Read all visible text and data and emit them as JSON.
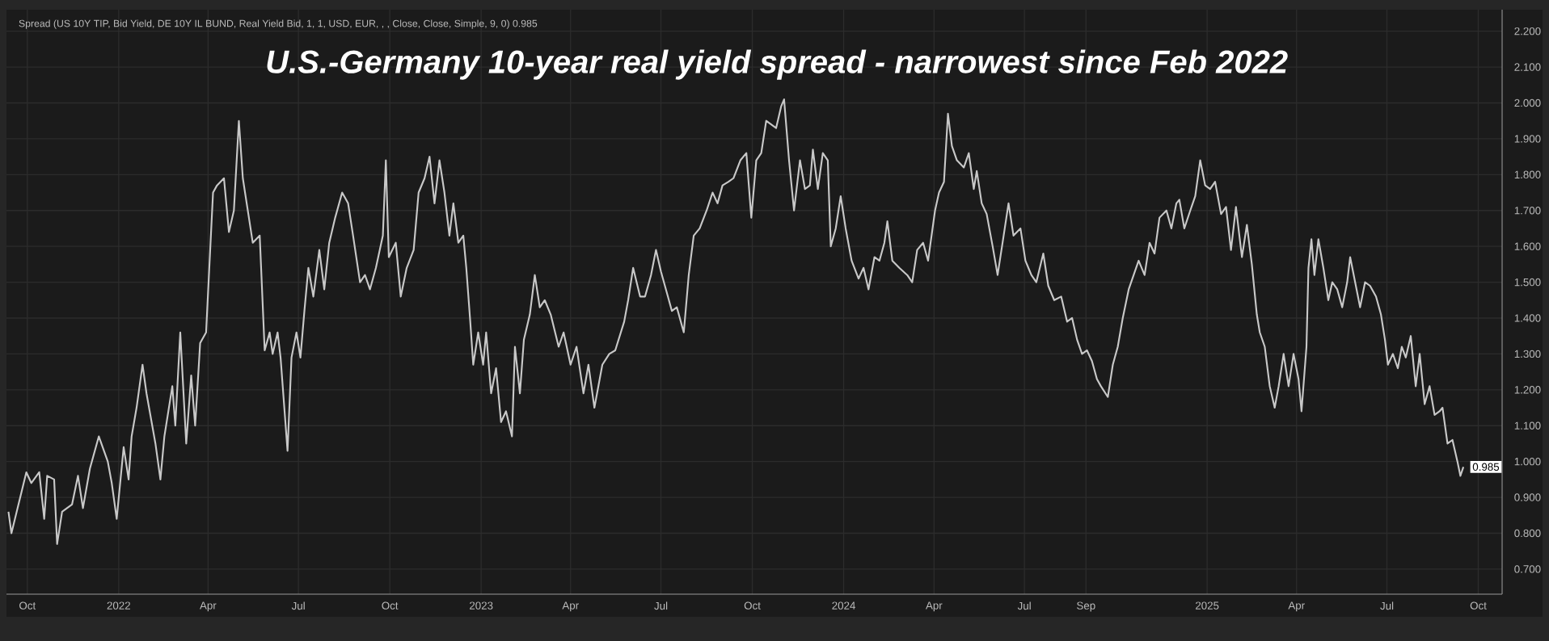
{
  "chart_data": {
    "type": "line",
    "title": "U.S.-Germany 10-year real yield spread - narrowest since Feb 2022",
    "subtitle": "Spread (US 10Y TIP, Bid Yield, DE 10Y IL BUND, Real Yield Bid, 1, 1, USD, EUR, , , Close, Close, Simple, 9, 0) 0.985",
    "color": "#c8c8c8",
    "grid": true,
    "xlim": [
      "2021-09-10",
      "2025-10-25"
    ],
    "ylim": [
      0.63,
      2.26
    ],
    "xticks": [
      {
        "value": "2021-10-01",
        "label": "Oct"
      },
      {
        "value": "2022-01-01",
        "label": "2022"
      },
      {
        "value": "2022-04-01",
        "label": "Apr"
      },
      {
        "value": "2022-07-01",
        "label": "Jul"
      },
      {
        "value": "2022-10-01",
        "label": "Oct"
      },
      {
        "value": "2023-01-01",
        "label": "2023"
      },
      {
        "value": "2023-04-01",
        "label": "Apr"
      },
      {
        "value": "2023-07-01",
        "label": "Jul"
      },
      {
        "value": "2023-10-01",
        "label": "Oct"
      },
      {
        "value": "2024-01-01",
        "label": "2024"
      },
      {
        "value": "2024-04-01",
        "label": "Apr"
      },
      {
        "value": "2024-07-01",
        "label": "Jul"
      },
      {
        "value": "2024-09-01",
        "label": "Sep"
      },
      {
        "value": "2025-01-01",
        "label": "2025"
      },
      {
        "value": "2025-04-01",
        "label": "Apr"
      },
      {
        "value": "2025-07-01",
        "label": "Jul"
      },
      {
        "value": "2025-10-01",
        "label": "Oct"
      }
    ],
    "yticks": [
      {
        "value": 0.7,
        "label": "0.700"
      },
      {
        "value": 0.8,
        "label": "0.800"
      },
      {
        "value": 0.9,
        "label": "0.900"
      },
      {
        "value": 1.0,
        "label": "1.000"
      },
      {
        "value": 1.1,
        "label": "1.100"
      },
      {
        "value": 1.2,
        "label": "1.200"
      },
      {
        "value": 1.3,
        "label": "1.300"
      },
      {
        "value": 1.4,
        "label": "1.400"
      },
      {
        "value": 1.5,
        "label": "1.500"
      },
      {
        "value": 1.6,
        "label": "1.600"
      },
      {
        "value": 1.7,
        "label": "1.700"
      },
      {
        "value": 1.8,
        "label": "1.800"
      },
      {
        "value": 1.9,
        "label": "1.900"
      },
      {
        "value": 2.0,
        "label": "2.000"
      },
      {
        "value": 2.1,
        "label": "2.100"
      },
      {
        "value": 2.2,
        "label": "2.200"
      }
    ],
    "annotations": [
      "0.985"
    ],
    "x": [
      "2021-09-12",
      "2021-09-15",
      "2021-09-30",
      "2021-10-05",
      "2021-10-13",
      "2021-10-18",
      "2021-10-21",
      "2021-10-28",
      "2021-10-31",
      "2021-11-05",
      "2021-11-15",
      "2021-11-21",
      "2021-11-26",
      "2021-12-03",
      "2021-12-12",
      "2021-12-21",
      "2021-12-25",
      "2021-12-30",
      "2022-01-06",
      "2022-01-11",
      "2022-01-14",
      "2022-01-19",
      "2022-01-25",
      "2022-01-29",
      "2022-02-07",
      "2022-02-12",
      "2022-02-16",
      "2022-02-24",
      "2022-02-27",
      "2022-03-04",
      "2022-03-10",
      "2022-03-15",
      "2022-03-19",
      "2022-03-24",
      "2022-03-30",
      "2022-04-06",
      "2022-04-10",
      "2022-04-17",
      "2022-04-22",
      "2022-04-27",
      "2022-05-02",
      "2022-05-06",
      "2022-05-11",
      "2022-05-16",
      "2022-05-23",
      "2022-05-28",
      "2022-06-02",
      "2022-06-05",
      "2022-06-10",
      "2022-06-13",
      "2022-06-20",
      "2022-06-24",
      "2022-06-29",
      "2022-07-03",
      "2022-07-07",
      "2022-07-11",
      "2022-07-16",
      "2022-07-22",
      "2022-07-27",
      "2022-08-01",
      "2022-08-07",
      "2022-08-14",
      "2022-08-20",
      "2022-08-25",
      "2022-09-01",
      "2022-09-06",
      "2022-09-11",
      "2022-09-17",
      "2022-09-24",
      "2022-09-27",
      "2022-09-30",
      "2022-10-07",
      "2022-10-12",
      "2022-10-18",
      "2022-10-25",
      "2022-10-30",
      "2022-11-05",
      "2022-11-10",
      "2022-11-15",
      "2022-11-20",
      "2022-11-25",
      "2022-11-30",
      "2022-12-04",
      "2022-12-09",
      "2022-12-14",
      "2022-12-17",
      "2022-12-21",
      "2022-12-24",
      "2022-12-29",
      "2023-01-03",
      "2023-01-06",
      "2023-01-11",
      "2023-01-16",
      "2023-01-21",
      "2023-01-26",
      "2023-02-01",
      "2023-02-04",
      "2023-02-09",
      "2023-02-13",
      "2023-02-19",
      "2023-02-24",
      "2023-03-01",
      "2023-03-06",
      "2023-03-12",
      "2023-03-20",
      "2023-03-25",
      "2023-04-01",
      "2023-04-07",
      "2023-04-14",
      "2023-04-19",
      "2023-04-25",
      "2023-05-03",
      "2023-05-10",
      "2023-05-16",
      "2023-05-25",
      "2023-05-29",
      "2023-06-03",
      "2023-06-10",
      "2023-06-15",
      "2023-06-21",
      "2023-06-26",
      "2023-07-01",
      "2023-07-08",
      "2023-07-12",
      "2023-07-17",
      "2023-07-24",
      "2023-07-29",
      "2023-08-03",
      "2023-08-09",
      "2023-08-16",
      "2023-08-22",
      "2023-08-27",
      "2023-09-01",
      "2023-09-07",
      "2023-09-12",
      "2023-09-19",
      "2023-09-25",
      "2023-09-30",
      "2023-10-05",
      "2023-10-10",
      "2023-10-15",
      "2023-10-25",
      "2023-10-30",
      "2023-11-02",
      "2023-11-07",
      "2023-11-12",
      "2023-11-18",
      "2023-11-23",
      "2023-11-28",
      "2023-12-01",
      "2023-12-06",
      "2023-12-11",
      "2023-12-16",
      "2023-12-19",
      "2023-12-24",
      "2023-12-29",
      "2024-01-03",
      "2024-01-09",
      "2024-01-16",
      "2024-01-21",
      "2024-01-26",
      "2024-02-01",
      "2024-02-06",
      "2024-02-11",
      "2024-02-14",
      "2024-02-19",
      "2024-02-26",
      "2024-03-05",
      "2024-03-10",
      "2024-03-15",
      "2024-03-21",
      "2024-03-26",
      "2024-04-02",
      "2024-04-06",
      "2024-04-11",
      "2024-04-15",
      "2024-04-19",
      "2024-04-24",
      "2024-05-01",
      "2024-05-06",
      "2024-05-11",
      "2024-05-14",
      "2024-05-19",
      "2024-05-24",
      "2024-05-30",
      "2024-06-04",
      "2024-06-09",
      "2024-06-15",
      "2024-06-20",
      "2024-06-27",
      "2024-07-02",
      "2024-07-08",
      "2024-07-13",
      "2024-07-20",
      "2024-07-25",
      "2024-07-31",
      "2024-08-07",
      "2024-08-13",
      "2024-08-18",
      "2024-08-23",
      "2024-08-28",
      "2024-09-02",
      "2024-09-07",
      "2024-09-12",
      "2024-09-16",
      "2024-09-23",
      "2024-09-28",
      "2024-10-03",
      "2024-10-08",
      "2024-10-14",
      "2024-10-19",
      "2024-10-24",
      "2024-10-30",
      "2024-11-04",
      "2024-11-09",
      "2024-11-14",
      "2024-11-21",
      "2024-11-26",
      "2024-12-01",
      "2024-12-04",
      "2024-12-09",
      "2024-12-15",
      "2024-12-20",
      "2024-12-25",
      "2024-12-30",
      "2025-01-04",
      "2025-01-09",
      "2025-01-15",
      "2025-01-20",
      "2025-01-25",
      "2025-01-30",
      "2025-02-05",
      "2025-02-10",
      "2025-02-15",
      "2025-02-20",
      "2025-02-23",
      "2025-02-28",
      "2025-03-05",
      "2025-03-10",
      "2025-03-14",
      "2025-03-19",
      "2025-03-24",
      "2025-03-29",
      "2025-04-03",
      "2025-04-06",
      "2025-04-11",
      "2025-04-13",
      "2025-04-16",
      "2025-04-19",
      "2025-04-23",
      "2025-04-28",
      "2025-05-03",
      "2025-05-07",
      "2025-05-12",
      "2025-05-17",
      "2025-05-22",
      "2025-05-25",
      "2025-05-30",
      "2025-06-04",
      "2025-06-09",
      "2025-06-14",
      "2025-06-20",
      "2025-06-25",
      "2025-06-29",
      "2025-07-02",
      "2025-07-07",
      "2025-07-12",
      "2025-07-16",
      "2025-07-20",
      "2025-07-25",
      "2025-07-30",
      "2025-08-03",
      "2025-08-08",
      "2025-08-13",
      "2025-08-18",
      "2025-08-23",
      "2025-08-26",
      "2025-08-31",
      "2025-09-05",
      "2025-09-10",
      "2025-09-13",
      "2025-09-16"
    ],
    "values": [
      0.86,
      0.8,
      0.97,
      0.94,
      0.97,
      0.84,
      0.96,
      0.95,
      0.77,
      0.86,
      0.88,
      0.96,
      0.87,
      0.98,
      1.07,
      1.0,
      0.94,
      0.84,
      1.04,
      0.95,
      1.07,
      1.15,
      1.27,
      1.19,
      1.05,
      0.95,
      1.07,
      1.21,
      1.1,
      1.36,
      1.05,
      1.24,
      1.1,
      1.33,
      1.36,
      1.75,
      1.77,
      1.79,
      1.64,
      1.7,
      1.95,
      1.79,
      1.7,
      1.61,
      1.63,
      1.31,
      1.36,
      1.3,
      1.36,
      1.29,
      1.03,
      1.29,
      1.36,
      1.29,
      1.42,
      1.54,
      1.46,
      1.59,
      1.48,
      1.61,
      1.68,
      1.75,
      1.72,
      1.63,
      1.5,
      1.52,
      1.48,
      1.54,
      1.63,
      1.84,
      1.57,
      1.61,
      1.46,
      1.54,
      1.59,
      1.75,
      1.79,
      1.85,
      1.72,
      1.84,
      1.75,
      1.63,
      1.72,
      1.61,
      1.63,
      1.54,
      1.39,
      1.27,
      1.36,
      1.27,
      1.36,
      1.19,
      1.26,
      1.11,
      1.14,
      1.07,
      1.32,
      1.19,
      1.34,
      1.41,
      1.52,
      1.43,
      1.45,
      1.41,
      1.32,
      1.36,
      1.27,
      1.32,
      1.19,
      1.27,
      1.15,
      1.27,
      1.3,
      1.31,
      1.39,
      1.45,
      1.54,
      1.46,
      1.46,
      1.52,
      1.59,
      1.53,
      1.46,
      1.42,
      1.43,
      1.36,
      1.52,
      1.63,
      1.65,
      1.7,
      1.75,
      1.72,
      1.77,
      1.78,
      1.79,
      1.84,
      1.86,
      1.68,
      1.84,
      1.86,
      1.95,
      1.93,
      1.99,
      2.01,
      1.84,
      1.7,
      1.84,
      1.76,
      1.77,
      1.87,
      1.76,
      1.86,
      1.84,
      1.6,
      1.65,
      1.74,
      1.65,
      1.56,
      1.51,
      1.54,
      1.48,
      1.57,
      1.56,
      1.61,
      1.67,
      1.56,
      1.54,
      1.52,
      1.5,
      1.59,
      1.61,
      1.56,
      1.7,
      1.75,
      1.78,
      1.97,
      1.88,
      1.84,
      1.82,
      1.86,
      1.76,
      1.81,
      1.72,
      1.69,
      1.6,
      1.52,
      1.61,
      1.72,
      1.63,
      1.65,
      1.56,
      1.52,
      1.5,
      1.58,
      1.49,
      1.45,
      1.46,
      1.39,
      1.4,
      1.34,
      1.3,
      1.31,
      1.28,
      1.23,
      1.21,
      1.18,
      1.27,
      1.32,
      1.4,
      1.48,
      1.52,
      1.56,
      1.52,
      1.61,
      1.58,
      1.68,
      1.7,
      1.65,
      1.72,
      1.73,
      1.65,
      1.7,
      1.74,
      1.84,
      1.77,
      1.76,
      1.78,
      1.69,
      1.71,
      1.59,
      1.71,
      1.57,
      1.66,
      1.55,
      1.41,
      1.36,
      1.32,
      1.21,
      1.15,
      1.21,
      1.3,
      1.21,
      1.3,
      1.23,
      1.14,
      1.32,
      1.54,
      1.62,
      1.52,
      1.62,
      1.54,
      1.45,
      1.5,
      1.48,
      1.43,
      1.5,
      1.57,
      1.5,
      1.43,
      1.5,
      1.49,
      1.46,
      1.41,
      1.34,
      1.27,
      1.3,
      1.26,
      1.32,
      1.29,
      1.35,
      1.21,
      1.3,
      1.16,
      1.21,
      1.13,
      1.14,
      1.15,
      1.05,
      1.06,
      1.0,
      0.96,
      0.985
    ]
  }
}
